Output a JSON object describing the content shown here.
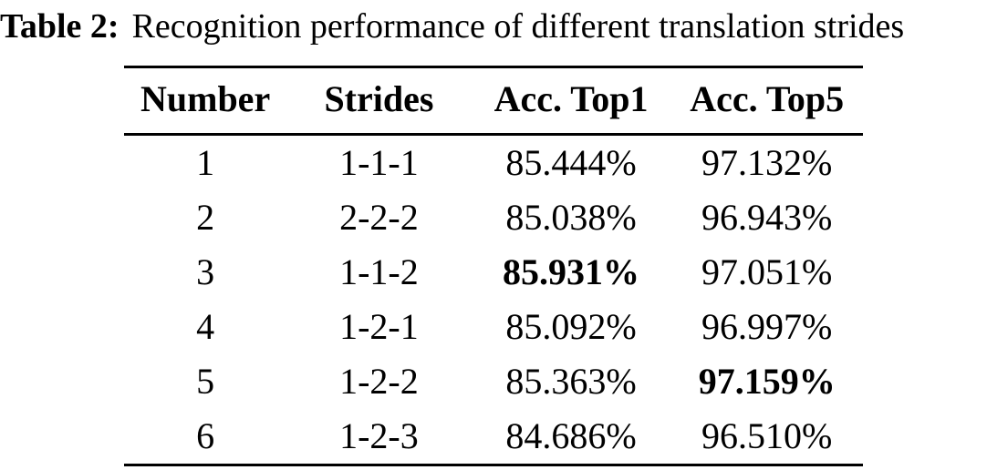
{
  "caption": {
    "label": "Table 2:",
    "text": "Recognition performance of different translation strides"
  },
  "table": {
    "columns": [
      "Number",
      "Strides",
      "Acc. Top1",
      "Acc. Top5"
    ],
    "rows": [
      {
        "number": "1",
        "strides": "1-1-1",
        "top1": "85.444%",
        "top5": "97.132%",
        "top1_bold": false,
        "top5_bold": false
      },
      {
        "number": "2",
        "strides": "2-2-2",
        "top1": "85.038%",
        "top5": "96.943%",
        "top1_bold": false,
        "top5_bold": false
      },
      {
        "number": "3",
        "strides": "1-1-2",
        "top1": "85.931%",
        "top5": "97.051%",
        "top1_bold": true,
        "top5_bold": false
      },
      {
        "number": "4",
        "strides": "1-2-1",
        "top1": "85.092%",
        "top5": "96.997%",
        "top1_bold": false,
        "top5_bold": false
      },
      {
        "number": "5",
        "strides": "1-2-2",
        "top1": "85.363%",
        "top5": "97.159%",
        "top1_bold": false,
        "top5_bold": true
      },
      {
        "number": "6",
        "strides": "1-2-3",
        "top1": "84.686%",
        "top5": "96.510%",
        "top1_bold": false,
        "top5_bold": false
      }
    ]
  },
  "colors": {
    "text": "#000000",
    "background": "#ffffff",
    "rule": "#000000"
  }
}
